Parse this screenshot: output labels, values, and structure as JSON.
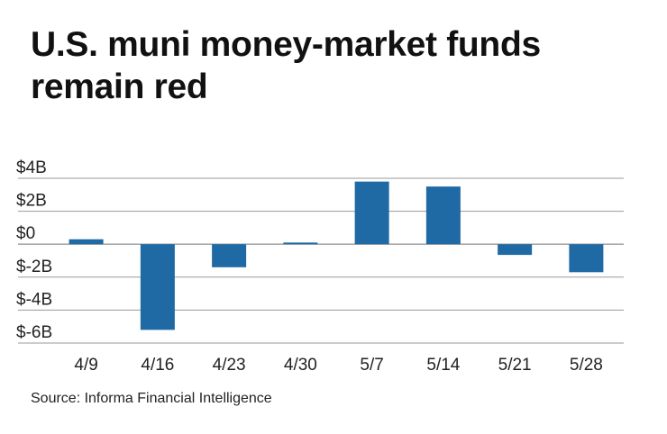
{
  "title": "U.S. muni money-market funds remain red",
  "source": "Source: Informa Financial Intelligence",
  "chart_data": {
    "type": "bar",
    "title": "U.S. muni money-market funds remain red",
    "xlabel": "",
    "ylabel": "",
    "categories": [
      "4/9",
      "4/16",
      "4/23",
      "4/30",
      "5/7",
      "5/14",
      "5/21",
      "5/28"
    ],
    "values": [
      0.3,
      -5.2,
      -1.4,
      0.1,
      3.8,
      3.5,
      -0.65,
      -1.7
    ],
    "ylim": [
      -6,
      4
    ],
    "yticks": [
      4,
      2,
      0,
      -2,
      -4,
      -6
    ],
    "ytick_labels": [
      "$4B",
      "$2B",
      "$0",
      "$-2B",
      "$-4B",
      "$-6B"
    ],
    "bar_color": "#1f6aa5",
    "grid": true,
    "grid_color": "#9a9a9a",
    "legend": "none"
  }
}
